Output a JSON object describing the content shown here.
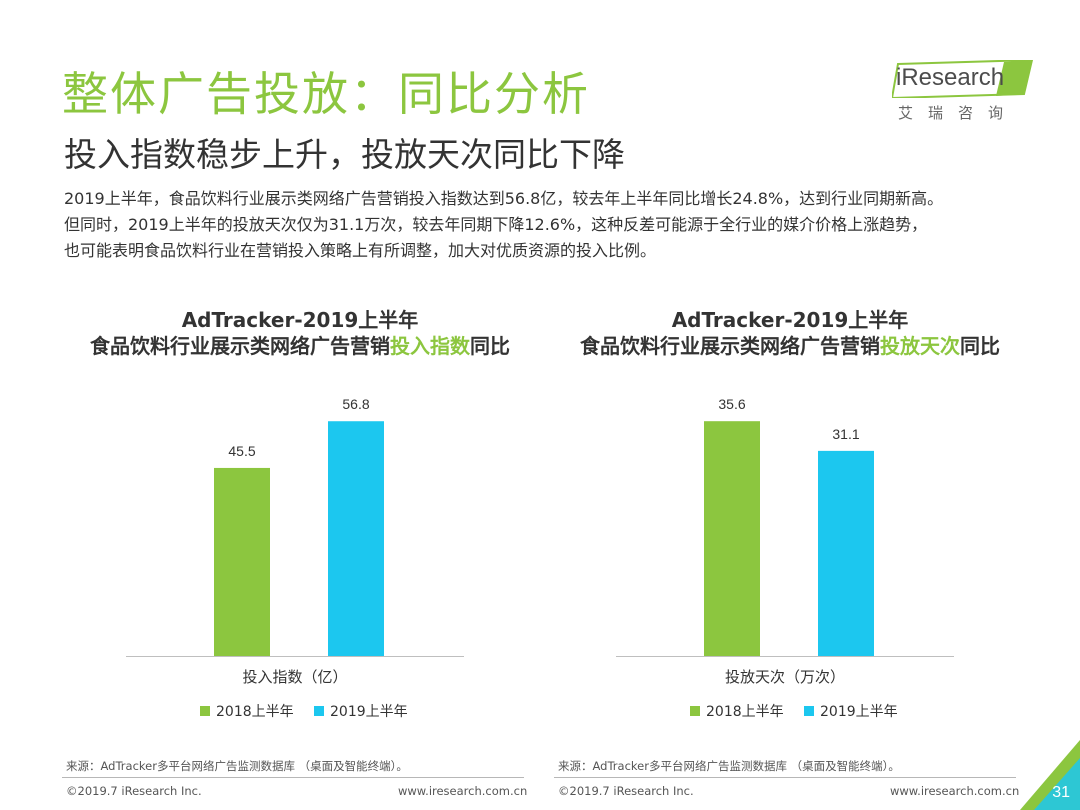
{
  "header": {
    "title": "整体广告投放：同比分析",
    "subtitle": "投入指数稳步上升，投放天次同比下降"
  },
  "logo": {
    "brand": "iResearch",
    "cn": "艾瑞咨询"
  },
  "body_text": [
    "2019上半年，食品饮料行业展示类网络广告营销投入指数达到56.8亿，较去年上半年同比增长24.8%，达到行业同期新高。",
    "但同时，2019上半年的投放天次仅为31.1万次，较去年同期下降12.6%，这种反差可能源于全行业的媒介价格上涨趋势，",
    "也可能表明食品饮料行业在营销投入策略上有所调整，加大对优质资源的投入比例。"
  ],
  "colors": {
    "green": "#8cc63f",
    "blue": "#1cc7ef",
    "title_green": "#8cc63f"
  },
  "chart_data": [
    {
      "type": "bar",
      "title_line1": "AdTracker-2019上半年",
      "title_line2_prefix": "食品饮料行业展示类网络广告营销",
      "title_line2_highlight": "投入指数",
      "title_line2_suffix": "同比",
      "xlabel": "投入指数（亿）",
      "series": [
        {
          "name": "2018上半年",
          "value": 45.5,
          "label": "45.5",
          "color": "#8cc63f"
        },
        {
          "name": "2019上半年",
          "value": 56.8,
          "label": "56.8",
          "color": "#1cc7ef"
        }
      ],
      "ylim": [
        0,
        60
      ],
      "legend_position": "bottom"
    },
    {
      "type": "bar",
      "title_line1": "AdTracker-2019上半年",
      "title_line2_prefix": "食品饮料行业展示类网络广告营销",
      "title_line2_highlight": "投放天次",
      "title_line2_suffix": "同比",
      "xlabel": "投放天次（万次）",
      "series": [
        {
          "name": "2018上半年",
          "value": 35.6,
          "label": "35.6",
          "color": "#8cc63f"
        },
        {
          "name": "2019上半年",
          "value": 31.1,
          "label": "31.1",
          "color": "#1cc7ef"
        }
      ],
      "ylim": [
        0,
        37.6
      ],
      "legend_position": "bottom"
    }
  ],
  "footer": {
    "source": "来源：AdTracker多平台网络广告监测数据库 （桌面及智能终端）。",
    "copyright": "©2019.7 iResearch Inc.",
    "url": "www.iresearch.com.cn",
    "page_number": "31"
  }
}
